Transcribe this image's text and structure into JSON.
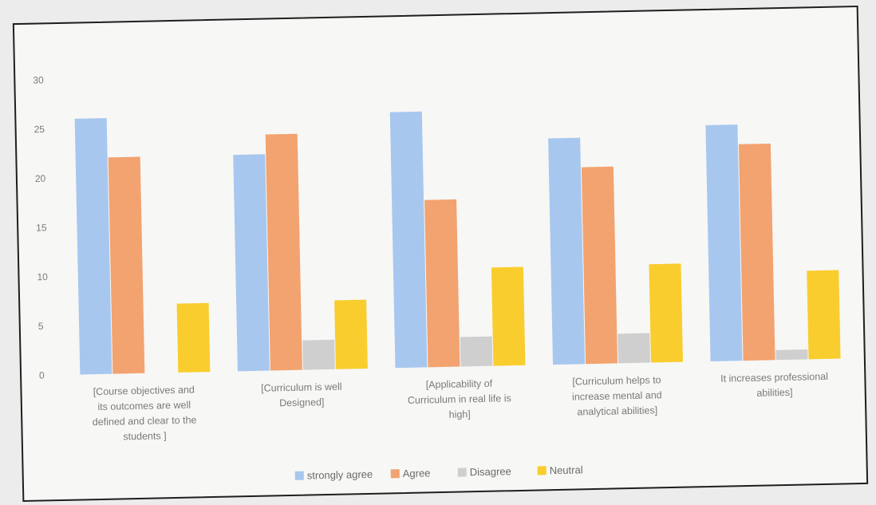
{
  "chart_data": {
    "type": "bar",
    "categories": [
      "[Course objectives and its outcomes are well defined and clear to the students ]",
      "[Curriculum is well Designed]",
      "[Applicability of Curriculum in real life is high]",
      "[Curriculum helps to increase mental and analytical abilities]",
      "It increases professional abilities]"
    ],
    "category_lines": [
      [
        "[Course objectives and",
        "its outcomes are well",
        "defined and clear to the",
        "students ]"
      ],
      [
        "[Curriculum is well",
        "Designed]"
      ],
      [
        "[Applicability of",
        "Curriculum in real life is",
        "high]"
      ],
      [
        "[Curriculum helps to",
        "increase mental and",
        "analytical abilities]"
      ],
      [
        "It increases professional",
        "abilities]"
      ]
    ],
    "series": [
      {
        "name": "strongly agree",
        "color": "#a7c7ef",
        "values": [
          26,
          22,
          26,
          23,
          24
        ]
      },
      {
        "name": "Agree",
        "color": "#f2a370",
        "values": [
          22,
          24,
          17,
          20,
          22
        ]
      },
      {
        "name": "Disagree",
        "color": "#cfcfcf",
        "values": [
          0,
          3,
          3,
          3,
          1
        ]
      },
      {
        "name": "Neutral",
        "color": "#f9cd2e",
        "values": [
          7,
          7,
          10,
          10,
          9
        ]
      }
    ],
    "yticks": [
      "0",
      "5",
      "10",
      "15",
      "20",
      "25",
      "30"
    ],
    "ylim": [
      0,
      30
    ],
    "title": "",
    "xlabel": "",
    "ylabel": "",
    "grid": false,
    "legend": "bottom"
  }
}
